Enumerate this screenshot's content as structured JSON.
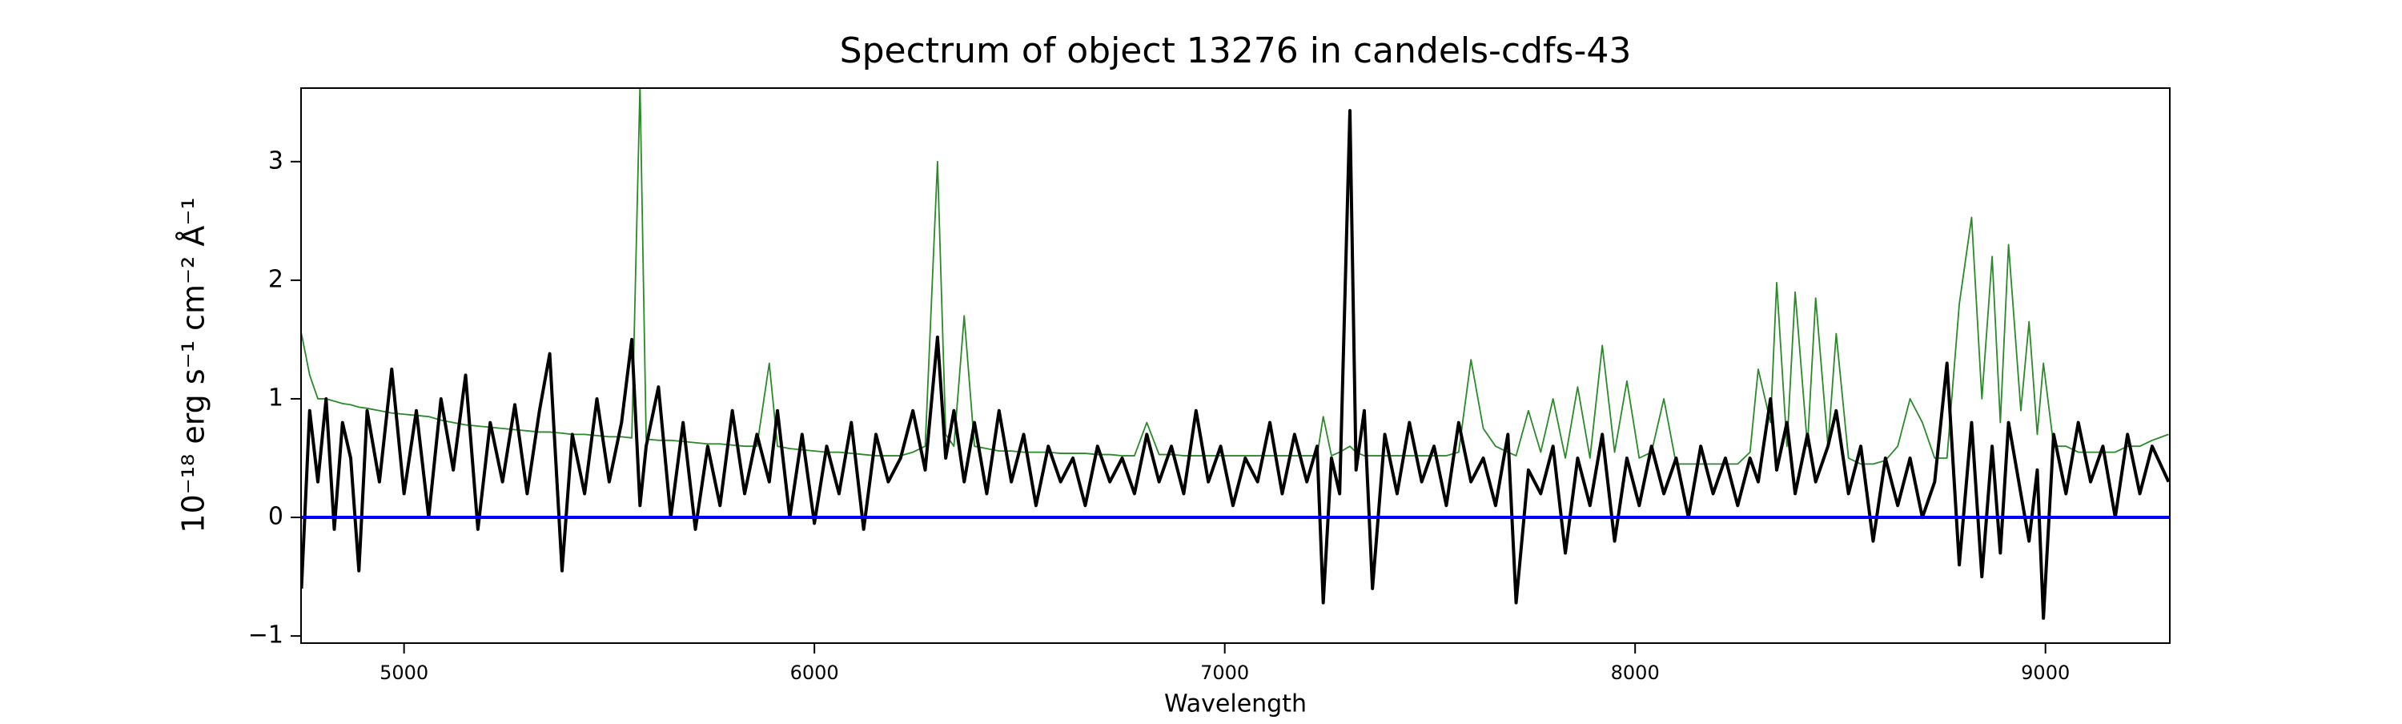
{
  "chart_data": {
    "type": "line",
    "title": "Spectrum of object 13276 in candels-cdfs-43",
    "xlabel": "Wavelength",
    "ylabel": "10⁻¹⁸ erg s⁻¹ cm⁻² Å⁻¹",
    "xlim": [
      4749,
      9303
    ],
    "ylim": [
      -1.06,
      3.62
    ],
    "xticks": [
      5000,
      6000,
      7000,
      8000,
      9000
    ],
    "yticks": [
      {
        "value": -1,
        "label": "−1"
      },
      0,
      1,
      2,
      3
    ],
    "hlines": [
      {
        "value": 0,
        "color": "#0000ff"
      }
    ],
    "x": [
      4750,
      4770,
      4790,
      4810,
      4830,
      4850,
      4870,
      4890,
      4910,
      4940,
      4970,
      5000,
      5030,
      5060,
      5090,
      5120,
      5150,
      5180,
      5210,
      5240,
      5270,
      5300,
      5330,
      5355,
      5385,
      5410,
      5440,
      5470,
      5500,
      5530,
      5555,
      5575,
      5590,
      5620,
      5650,
      5680,
      5710,
      5740,
      5770,
      5800,
      5830,
      5860,
      5890,
      5910,
      5940,
      5970,
      6000,
      6030,
      6060,
      6090,
      6120,
      6150,
      6180,
      6210,
      6240,
      6270,
      6300,
      6320,
      6340,
      6365,
      6390,
      6420,
      6450,
      6480,
      6510,
      6540,
      6570,
      6600,
      6630,
      6660,
      6690,
      6720,
      6750,
      6780,
      6810,
      6840,
      6870,
      6900,
      6930,
      6960,
      6990,
      7020,
      7050,
      7080,
      7110,
      7140,
      7170,
      7200,
      7225,
      7240,
      7260,
      7280,
      7305,
      7320,
      7340,
      7360,
      7390,
      7420,
      7450,
      7480,
      7510,
      7540,
      7570,
      7600,
      7630,
      7660,
      7690,
      7710,
      7740,
      7770,
      7800,
      7830,
      7860,
      7890,
      7920,
      7950,
      7980,
      8010,
      8040,
      8070,
      8100,
      8130,
      8160,
      8190,
      8220,
      8250,
      8280,
      8300,
      8330,
      8345,
      8370,
      8390,
      8420,
      8440,
      8470,
      8490,
      8520,
      8550,
      8580,
      8610,
      8640,
      8670,
      8700,
      8730,
      8760,
      8790,
      8820,
      8845,
      8870,
      8890,
      8910,
      8940,
      8960,
      8980,
      8995,
      9020,
      9050,
      9080,
      9110,
      9140,
      9170,
      9200,
      9230,
      9260,
      9300
    ],
    "series": [
      {
        "color": "#2a8a2a",
        "width": 1.8,
        "values": [
          1.55,
          1.2,
          1.0,
          1.0,
          0.98,
          0.96,
          0.95,
          0.93,
          0.92,
          0.9,
          0.88,
          0.87,
          0.86,
          0.85,
          0.82,
          0.8,
          0.78,
          0.77,
          0.76,
          0.75,
          0.74,
          0.73,
          0.72,
          0.72,
          0.71,
          0.7,
          0.7,
          0.69,
          0.68,
          0.68,
          0.67,
          3.65,
          0.66,
          0.65,
          0.65,
          0.64,
          0.63,
          0.62,
          0.62,
          0.61,
          0.6,
          0.6,
          1.3,
          0.6,
          0.58,
          0.57,
          0.56,
          0.55,
          0.55,
          0.54,
          0.53,
          0.52,
          0.52,
          0.52,
          0.55,
          0.6,
          3.0,
          0.7,
          0.6,
          1.7,
          0.6,
          0.58,
          0.56,
          0.56,
          0.55,
          0.55,
          0.55,
          0.54,
          0.54,
          0.54,
          0.53,
          0.53,
          0.52,
          0.52,
          0.8,
          0.53,
          0.53,
          0.52,
          0.52,
          0.52,
          0.52,
          0.52,
          0.52,
          0.52,
          0.52,
          0.52,
          0.52,
          0.52,
          0.52,
          0.85,
          0.52,
          0.55,
          0.6,
          0.55,
          0.52,
          0.52,
          0.52,
          0.52,
          0.52,
          0.52,
          0.52,
          0.52,
          0.55,
          1.33,
          0.75,
          0.6,
          0.55,
          0.52,
          0.9,
          0.55,
          1.0,
          0.5,
          1.1,
          0.5,
          1.45,
          0.55,
          1.15,
          0.5,
          0.55,
          1.0,
          0.45,
          0.45,
          0.45,
          0.45,
          0.45,
          0.45,
          0.55,
          1.25,
          0.8,
          1.98,
          0.6,
          1.9,
          0.6,
          1.85,
          0.6,
          1.55,
          0.5,
          0.45,
          0.45,
          0.48,
          0.6,
          1.0,
          0.8,
          0.5,
          0.5,
          1.8,
          2.53,
          1.0,
          2.2,
          0.8,
          2.3,
          0.9,
          1.65,
          0.7,
          1.3,
          0.6,
          0.6,
          0.55,
          0.55,
          0.55,
          0.55,
          0.6,
          0.6,
          0.65,
          0.7
        ]
      },
      {
        "color": "#000000",
        "width": 4,
        "values": [
          -0.6,
          0.9,
          0.3,
          1.0,
          -0.1,
          0.8,
          0.5,
          -0.45,
          0.9,
          0.3,
          1.25,
          0.2,
          0.9,
          0.0,
          1.0,
          0.4,
          1.2,
          -0.1,
          0.8,
          0.3,
          0.95,
          0.2,
          0.9,
          1.38,
          -0.45,
          0.7,
          0.2,
          1.0,
          0.3,
          0.8,
          1.5,
          0.1,
          0.6,
          1.1,
          0.0,
          0.8,
          -0.1,
          0.6,
          0.1,
          0.9,
          0.2,
          0.7,
          0.3,
          0.9,
          0.0,
          0.7,
          -0.05,
          0.6,
          0.2,
          0.8,
          -0.1,
          0.7,
          0.3,
          0.5,
          0.9,
          0.4,
          1.52,
          0.5,
          0.9,
          0.3,
          0.8,
          0.2,
          0.9,
          0.3,
          0.7,
          0.1,
          0.6,
          0.3,
          0.5,
          0.1,
          0.6,
          0.3,
          0.5,
          0.2,
          0.7,
          0.3,
          0.6,
          0.2,
          0.9,
          0.3,
          0.6,
          0.1,
          0.5,
          0.3,
          0.8,
          0.2,
          0.7,
          0.3,
          0.6,
          -0.72,
          0.5,
          0.2,
          3.43,
          0.4,
          0.9,
          -0.6,
          0.7,
          0.2,
          0.8,
          0.3,
          0.6,
          0.1,
          0.8,
          0.3,
          0.5,
          0.1,
          0.7,
          -0.72,
          0.4,
          0.2,
          0.6,
          -0.3,
          0.5,
          0.1,
          0.7,
          -0.2,
          0.5,
          0.1,
          0.6,
          0.2,
          0.5,
          0.0,
          0.6,
          0.2,
          0.5,
          0.1,
          0.5,
          0.3,
          1.0,
          0.4,
          0.8,
          0.2,
          0.7,
          0.3,
          0.6,
          0.9,
          0.2,
          0.6,
          -0.2,
          0.5,
          0.1,
          0.5,
          0.0,
          0.3,
          1.3,
          -0.4,
          0.8,
          -0.5,
          0.6,
          -0.3,
          0.8,
          0.2,
          -0.2,
          0.4,
          -0.85,
          0.7,
          0.2,
          0.8,
          0.3,
          0.6,
          0.0,
          0.7,
          0.2,
          0.6,
          0.3
        ]
      }
    ]
  }
}
